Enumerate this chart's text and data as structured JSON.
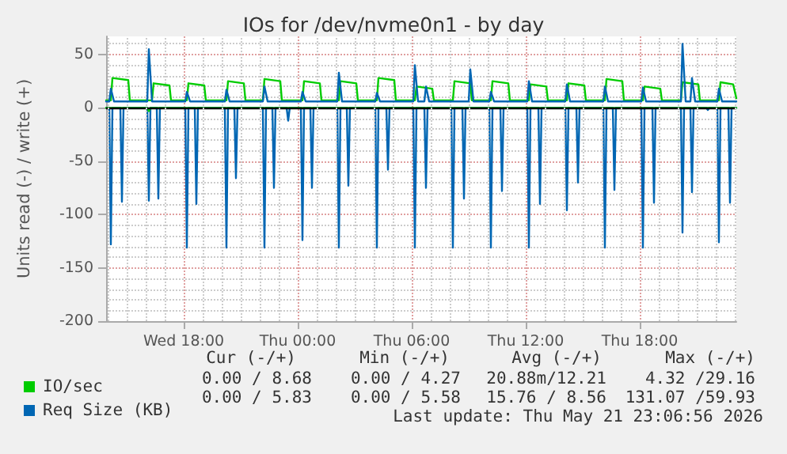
{
  "chart_data": {
    "type": "line",
    "title": "IOs for /dev/nvme0n1 - by day",
    "ylabel": "Units read (-) / write (+)",
    "xlim": [
      "2026-05-20T13:55",
      "2026-05-21T23:05"
    ],
    "xticks": [
      {
        "value": "2026-05-20T18:00",
        "label": "Wed 18:00"
      },
      {
        "value": "2026-05-21T00:00",
        "label": "Thu 00:00"
      },
      {
        "value": "2026-05-21T06:00",
        "label": "Thu 06:00"
      },
      {
        "value": "2026-05-21T12:00",
        "label": "Thu 12:00"
      },
      {
        "value": "2026-05-21T18:00",
        "label": "Thu 18:00"
      }
    ],
    "ylim": [
      -200,
      67
    ],
    "yticks": [
      -200,
      -150,
      -100,
      -50,
      0,
      50
    ],
    "grid": true,
    "legend": "bottom left",
    "marker": "none",
    "line_style": "solid",
    "ref_lines": [
      {
        "axis": "y",
        "value": 0,
        "color": "#000000"
      }
    ],
    "series": [
      {
        "color": "#0066b3",
        "x": [
          "2026-05-20T13:55",
          "2026-05-20T14:05",
          "2026-05-20T14:10",
          "2026-05-20T14:15",
          "2026-05-20T14:40",
          "2026-05-20T14:45",
          "2026-05-20T14:50",
          "2026-05-20T16:05",
          "2026-05-20T16:10",
          "2026-05-20T16:15",
          "2026-05-20T16:35",
          "2026-05-20T16:40",
          "2026-05-20T16:45",
          "2026-05-20T18:05",
          "2026-05-20T18:10",
          "2026-05-20T18:15",
          "2026-05-20T18:35",
          "2026-05-20T18:40",
          "2026-05-20T18:45",
          "2026-05-20T20:10",
          "2026-05-20T20:15",
          "2026-05-20T20:20",
          "2026-05-20T20:40",
          "2026-05-20T20:45",
          "2026-05-20T20:50",
          "2026-05-20T22:10",
          "2026-05-20T22:15",
          "2026-05-20T22:20",
          "2026-05-20T22:40",
          "2026-05-20T22:45",
          "2026-05-20T22:50",
          "2026-05-20T23:25",
          "2026-05-20T23:30",
          "2026-05-20T23:35",
          "2026-05-21T00:10",
          "2026-05-21T00:15",
          "2026-05-21T00:20",
          "2026-05-21T00:40",
          "2026-05-21T00:45",
          "2026-05-21T00:50",
          "2026-05-21T02:05",
          "2026-05-21T02:10",
          "2026-05-21T02:15",
          "2026-05-21T02:35",
          "2026-05-21T02:40",
          "2026-05-21T02:45",
          "2026-05-21T04:05",
          "2026-05-21T04:10",
          "2026-05-21T04:15",
          "2026-05-21T04:40",
          "2026-05-21T04:45",
          "2026-05-21T04:50",
          "2026-05-21T06:05",
          "2026-05-21T06:10",
          "2026-05-21T06:15",
          "2026-05-21T06:40",
          "2026-05-21T06:45",
          "2026-05-21T06:50",
          "2026-05-21T08:05",
          "2026-05-21T08:10",
          "2026-05-21T08:15",
          "2026-05-21T08:40",
          "2026-05-21T08:45",
          "2026-05-21T08:50",
          "2026-05-21T10:05",
          "2026-05-21T10:10",
          "2026-05-21T10:15",
          "2026-05-21T10:40",
          "2026-05-21T10:45",
          "2026-05-21T10:50",
          "2026-05-21T12:05",
          "2026-05-21T12:10",
          "2026-05-21T12:15",
          "2026-05-21T12:40",
          "2026-05-21T12:45",
          "2026-05-21T12:50",
          "2026-05-21T14:05",
          "2026-05-21T14:10",
          "2026-05-21T14:15",
          "2026-05-21T14:40",
          "2026-05-21T14:45",
          "2026-05-21T14:50",
          "2026-05-21T16:05",
          "2026-05-21T16:10",
          "2026-05-21T16:15",
          "2026-05-21T16:35",
          "2026-05-21T16:40",
          "2026-05-21T16:45",
          "2026-05-21T18:05",
          "2026-05-21T18:10",
          "2026-05-21T18:15",
          "2026-05-21T18:40",
          "2026-05-21T18:45",
          "2026-05-21T18:50",
          "2026-05-21T20:10",
          "2026-05-21T20:15",
          "2026-05-21T20:20",
          "2026-05-21T20:40",
          "2026-05-21T20:45",
          "2026-05-21T20:50",
          "2026-05-21T21:30",
          "2026-05-21T21:35",
          "2026-05-21T21:40",
          "2026-05-21T22:05",
          "2026-05-21T22:10",
          "2026-05-21T22:15",
          "2026-05-21T22:40",
          "2026-05-21T22:45",
          "2026-05-21T22:50",
          "2026-05-21T23:05"
        ],
        "values": [
          0,
          0,
          -128,
          0,
          0,
          -88,
          0,
          0,
          -87,
          0,
          0,
          -85,
          0,
          0,
          -131,
          0,
          0,
          -90,
          0,
          0,
          -131,
          0,
          0,
          -66,
          0,
          0,
          -131,
          0,
          0,
          -75,
          0,
          0,
          -12,
          0,
          0,
          -124,
          0,
          0,
          -75,
          0,
          0,
          -131,
          0,
          0,
          -73,
          0,
          0,
          -131,
          0,
          0,
          -58,
          0,
          0,
          -131,
          0,
          0,
          -75,
          0,
          0,
          -131,
          0,
          0,
          -85,
          0,
          0,
          -131,
          0,
          0,
          -78,
          0,
          0,
          -131,
          0,
          0,
          -90,
          0,
          0,
          -96,
          0,
          0,
          -70,
          0,
          0,
          -131,
          0,
          0,
          -77,
          0,
          0,
          -131,
          0,
          0,
          -89,
          0,
          0,
          -117,
          0,
          0,
          -79,
          0,
          0,
          -2,
          0,
          0,
          -126,
          0,
          0,
          -89,
          0,
          0
        ]
      },
      {
        "color": "#00cc00",
        "x": [
          "2026-05-20T13:55",
          "2026-05-20T16:05",
          "2026-05-20T16:10",
          "2026-05-20T16:15",
          "2026-05-21T23:05"
        ],
        "values": [
          0,
          0,
          -3,
          0,
          0
        ]
      },
      {
        "name": "IO/sec",
        "color": "#00cc00",
        "x": [
          "2026-05-20T13:55",
          "2026-05-20T14:10",
          "2026-05-20T14:15",
          "2026-05-20T15:05",
          "2026-05-20T15:10",
          "2026-05-20T16:20",
          "2026-05-20T16:25",
          "2026-05-20T17:15",
          "2026-05-20T17:20",
          "2026-05-20T18:10",
          "2026-05-20T18:15",
          "2026-05-20T19:05",
          "2026-05-20T19:10",
          "2026-05-20T20:15",
          "2026-05-20T20:20",
          "2026-05-20T21:10",
          "2026-05-20T21:15",
          "2026-05-20T22:10",
          "2026-05-20T22:15",
          "2026-05-20T23:05",
          "2026-05-20T23:10",
          "2026-05-21T00:15",
          "2026-05-21T00:20",
          "2026-05-21T01:10",
          "2026-05-21T01:15",
          "2026-05-21T02:10",
          "2026-05-21T02:15",
          "2026-05-21T03:05",
          "2026-05-21T03:10",
          "2026-05-21T04:10",
          "2026-05-21T04:15",
          "2026-05-21T05:05",
          "2026-05-21T05:10",
          "2026-05-21T06:10",
          "2026-05-21T06:15",
          "2026-05-21T07:05",
          "2026-05-21T07:10",
          "2026-05-21T08:10",
          "2026-05-21T08:15",
          "2026-05-21T09:05",
          "2026-05-21T09:10",
          "2026-05-21T10:10",
          "2026-05-21T10:15",
          "2026-05-21T11:05",
          "2026-05-21T11:10",
          "2026-05-21T12:10",
          "2026-05-21T12:15",
          "2026-05-21T13:05",
          "2026-05-21T13:10",
          "2026-05-21T14:10",
          "2026-05-21T14:15",
          "2026-05-21T15:05",
          "2026-05-21T15:10",
          "2026-05-21T16:10",
          "2026-05-21T16:15",
          "2026-05-21T17:05",
          "2026-05-21T17:10",
          "2026-05-21T18:10",
          "2026-05-21T18:15",
          "2026-05-21T19:05",
          "2026-05-21T19:10",
          "2026-05-21T20:10",
          "2026-05-21T20:15",
          "2026-05-21T21:05",
          "2026-05-21T21:10",
          "2026-05-21T22:10",
          "2026-05-21T22:15",
          "2026-05-21T22:55",
          "2026-05-21T23:05"
        ],
        "values": [
          7,
          7,
          28,
          26,
          7,
          7,
          23,
          21,
          7,
          7,
          23,
          21,
          7,
          7,
          25,
          23,
          7,
          7,
          27,
          25,
          7,
          7,
          25,
          23,
          7,
          7,
          25,
          23,
          7,
          7,
          28,
          26,
          7,
          7,
          20,
          18,
          7,
          7,
          25,
          23,
          7,
          7,
          25,
          23,
          7,
          7,
          22,
          20,
          7,
          7,
          23,
          21,
          7,
          7,
          27,
          25,
          7,
          7,
          20,
          18,
          7,
          7,
          24,
          22,
          7,
          7,
          24,
          22,
          9
        ]
      },
      {
        "name": "Req Size (KB)",
        "color": "#0066b3",
        "x": [
          "2026-05-20T13:55",
          "2026-05-20T14:05",
          "2026-05-20T14:10",
          "2026-05-20T14:20",
          "2026-05-20T16:05",
          "2026-05-20T16:10",
          "2026-05-20T16:20",
          "2026-05-20T18:05",
          "2026-05-20T18:10",
          "2026-05-20T18:20",
          "2026-05-20T20:10",
          "2026-05-20T20:15",
          "2026-05-20T20:25",
          "2026-05-20T22:10",
          "2026-05-20T22:15",
          "2026-05-20T22:25",
          "2026-05-21T00:10",
          "2026-05-21T00:15",
          "2026-05-21T00:25",
          "2026-05-21T02:05",
          "2026-05-21T02:10",
          "2026-05-21T02:20",
          "2026-05-21T04:05",
          "2026-05-21T04:10",
          "2026-05-21T04:20",
          "2026-05-21T06:05",
          "2026-05-21T06:10",
          "2026-05-21T06:20",
          "2026-05-21T06:40",
          "2026-05-21T06:45",
          "2026-05-21T06:55",
          "2026-05-21T09:00",
          "2026-05-21T09:05",
          "2026-05-21T09:15",
          "2026-05-21T10:05",
          "2026-05-21T10:10",
          "2026-05-21T10:20",
          "2026-05-21T12:05",
          "2026-05-21T12:10",
          "2026-05-21T12:20",
          "2026-05-21T14:05",
          "2026-05-21T14:10",
          "2026-05-21T14:20",
          "2026-05-21T16:05",
          "2026-05-21T16:10",
          "2026-05-21T16:20",
          "2026-05-21T18:05",
          "2026-05-21T18:10",
          "2026-05-21T18:20",
          "2026-05-21T20:10",
          "2026-05-21T20:15",
          "2026-05-21T20:25",
          "2026-05-21T20:40",
          "2026-05-21T20:45",
          "2026-05-21T20:55",
          "2026-05-21T22:05",
          "2026-05-21T22:10",
          "2026-05-21T22:20",
          "2026-05-21T23:05"
        ],
        "values": [
          6,
          6,
          18,
          6,
          6,
          55,
          6,
          6,
          15,
          6,
          6,
          17,
          6,
          6,
          20,
          6,
          6,
          15,
          6,
          6,
          33,
          6,
          6,
          14,
          6,
          6,
          40,
          6,
          6,
          20,
          6,
          6,
          36,
          6,
          6,
          15,
          6,
          6,
          25,
          6,
          6,
          22,
          6,
          6,
          20,
          6,
          6,
          19,
          6,
          6,
          60,
          6,
          6,
          28,
          6,
          6,
          18,
          6,
          6
        ]
      }
    ],
    "annotations": [
      "Cur (-/+)",
      "Min (-/+)",
      "Avg (-/+)",
      "Max (-/+)",
      "0.00 / 8.68",
      "0.00 / 4.27",
      "20.88m/12.21",
      "4.32 /29.16",
      "0.00 / 5.83",
      "0.00 / 5.58",
      "15.76 / 8.56",
      "131.07 /59.93",
      "Last update: Thu May 21 23:06:56 2026"
    ]
  }
}
